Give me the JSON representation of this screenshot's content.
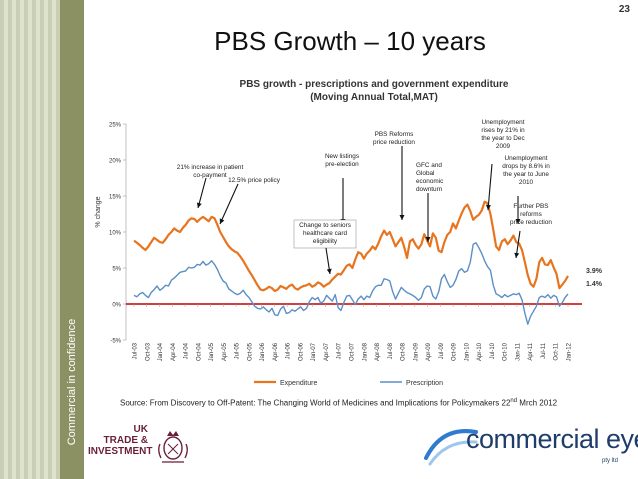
{
  "page_number": "23",
  "slide_title": "PBS Growth – 10 years",
  "sidebar_label": "Commercial in confidence",
  "source": {
    "text_before": "Source: From Discovery to Off-Patent: The Changing World of Medicines and Implications for Policymakers 22",
    "superscript": "nd",
    "text_after": " Mrch 2012"
  },
  "logos": {
    "uk_trade_lines": [
      "UK",
      "TRADE &",
      "INVESTMENT"
    ],
    "commercial_eyes": "commercial eyes",
    "commercial_eyes_sub": "pty ltd"
  },
  "colors": {
    "expenditure": "#e8741e",
    "prescription": "#5b8fc7",
    "zero_line": "#c00000",
    "sidebar_dark": "#8b9163"
  },
  "chart_data": {
    "type": "line",
    "title": "PBS growth - prescriptions and government expenditure",
    "subtitle": "(Moving Annual Total,MAT)",
    "ylabel": "% change",
    "xlabel": "",
    "ylim": [
      -5,
      25
    ],
    "y_ticks": [
      "25%",
      "20%",
      "15%",
      "10%",
      "5%",
      "0%",
      "-5%"
    ],
    "x_tick_labels": [
      "Jul-03",
      "Oct-03",
      "Jan-04",
      "Apr-04",
      "Jul-04",
      "Oct-04",
      "Jan-05",
      "Apr-05",
      "Jul-05",
      "Oct-05",
      "Jan-06",
      "Apr-06",
      "Jul-06",
      "Oct-06",
      "Jan-07",
      "Apr-07",
      "Jul-07",
      "Oct-07",
      "Jan-08",
      "Apr-08",
      "Jul-08",
      "Oct-08",
      "Jan-09",
      "Apr-09",
      "Jul-09",
      "Oct-09",
      "Jan-10",
      "Apr-10",
      "Jul-10",
      "Oct-10",
      "Jan-11",
      "Apr-11",
      "Jul-11",
      "Oct-11",
      "Jan-12"
    ],
    "legend_position": "bottom",
    "series": [
      {
        "name": "Expenditure",
        "values": [
          8.8,
          8.5,
          8.2,
          7.8,
          7.5,
          8.0,
          8.6,
          9.2,
          8.9,
          8.6,
          8.5,
          9.0,
          9.6,
          10.0,
          10.5,
          10.2,
          10.0,
          10.6,
          11.0,
          11.6,
          11.9,
          11.8,
          11.4,
          11.8,
          12.1,
          11.8,
          11.5,
          12.1,
          11.9,
          11.0,
          10.0,
          9.3,
          8.6,
          8.0,
          7.6,
          7.3,
          7.1,
          6.6,
          6.0,
          5.3,
          4.6,
          4.0,
          3.3,
          2.6,
          2.0,
          1.9,
          2.1,
          2.4,
          2.2,
          1.8,
          2.0,
          2.5,
          2.3,
          2.1,
          2.5,
          2.7,
          2.2,
          2.0,
          2.3,
          2.5,
          2.6,
          2.8,
          2.4,
          2.6,
          3.0,
          2.8,
          2.4,
          2.7,
          2.9,
          3.4,
          3.8,
          4.2,
          4.1,
          4.7,
          5.3,
          5.5,
          5.0,
          6.2,
          7.2,
          7.0,
          6.3,
          7.0,
          7.4,
          8.0,
          7.6,
          8.4,
          9.4,
          10.2,
          9.6,
          10.0,
          9.0,
          8.0,
          8.6,
          9.2,
          7.9,
          6.4,
          8.7,
          9.0,
          8.2,
          7.7,
          8.3,
          9.7,
          8.8,
          8.0,
          9.8,
          9.2,
          7.4,
          7.2,
          8.6,
          9.6,
          10.0,
          11.2,
          10.5,
          11.6,
          12.6,
          13.4,
          13.8,
          12.9,
          11.7,
          12.1,
          12.4,
          13.0,
          14.2,
          14.0,
          12.5,
          10.3,
          8.0,
          7.5,
          8.7,
          9.0,
          8.3,
          8.8,
          9.5,
          8.6,
          8.4,
          7.5,
          5.8,
          4.0,
          2.8,
          2.4,
          3.5,
          5.8,
          6.4,
          5.5,
          5.4,
          6.1,
          5.1,
          4.2,
          2.2,
          2.7,
          3.2,
          3.9
        ]
      },
      {
        "name": "Prescription",
        "values": [
          1.2,
          1.0,
          1.4,
          1.6,
          1.2,
          0.9,
          1.6,
          2.0,
          2.5,
          1.9,
          2.2,
          2.6,
          2.5,
          3.3,
          3.6,
          4.0,
          4.4,
          4.5,
          4.6,
          5.1,
          5.0,
          5.1,
          5.5,
          5.4,
          5.9,
          5.4,
          5.6,
          6.0,
          5.5,
          4.8,
          3.9,
          3.2,
          2.9,
          2.1,
          1.8,
          1.5,
          1.3,
          1.5,
          1.9,
          1.3,
          0.9,
          0.3,
          -0.3,
          -0.6,
          -0.7,
          -0.4,
          -0.8,
          -1.1,
          -0.6,
          -1.5,
          -1.6,
          -0.7,
          -0.3,
          -1.3,
          -1.2,
          -0.8,
          -1.0,
          -0.7,
          -0.4,
          -0.9,
          -0.6,
          0.3,
          0.9,
          0.6,
          0.9,
          0.1,
          0.4,
          1.2,
          0.8,
          0.4,
          1.3,
          -0.5,
          -0.9,
          0.2,
          1.1,
          1.2,
          0.6,
          -0.1,
          0.7,
          1.1,
          0.6,
          1.1,
          0.9,
          1.8,
          2.4,
          2.6,
          2.6,
          3.5,
          3.4,
          3.2,
          1.7,
          0.7,
          1.5,
          2.3,
          1.9,
          1.6,
          1.4,
          1.2,
          0.9,
          0.5,
          0.9,
          2.1,
          2.5,
          2.4,
          1.1,
          0.7,
          1.7,
          3.5,
          4.1,
          3.1,
          2.3,
          2.6,
          3.4,
          4.6,
          4.9,
          4.4,
          4.6,
          5.8,
          8.3,
          8.5,
          7.8,
          7.0,
          6.0,
          5.2,
          4.7,
          2.6,
          1.4,
          1.2,
          0.9,
          1.3,
          1.0,
          1.2,
          1.4,
          1.3,
          1.5,
          0.6,
          -1.3,
          -2.8,
          -1.7,
          -1.0,
          -0.3,
          0.9,
          1.1,
          0.9,
          1.3,
          0.8,
          1.2,
          1.0,
          -0.3,
          0.2,
          0.9,
          1.4
        ]
      }
    ],
    "end_labels": [
      "3.9%",
      "1.4%"
    ],
    "annotations": [
      "21% increase in patient co-payment",
      "12.5% price policy",
      "New listings pre-election",
      "Change to seniors healthcare card eligibility",
      "PBS Reforms price reduction",
      "GFC and Global economic downturn",
      "Unemployment rises by 21% in the year to Dec 2009",
      "Unemployment drops by 8.6% in the year to June 2010",
      "Further PBS reforms price reduction"
    ]
  }
}
